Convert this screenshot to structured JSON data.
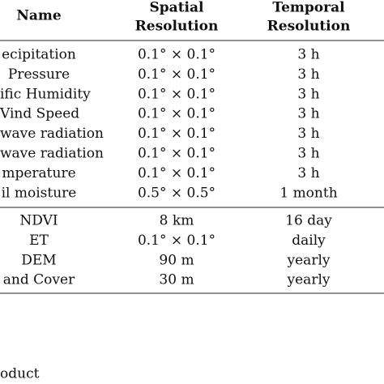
{
  "table": {
    "header": [
      [
        "Name"
      ],
      [
        "Spatial",
        "Resolution"
      ],
      [
        "Temporal",
        "Resolution"
      ]
    ],
    "groups": [
      [
        [
          "ecipitation",
          "0.1° × 0.1°",
          "3 h"
        ],
        [
          "Pressure",
          "0.1° × 0.1°",
          "3 h"
        ],
        [
          "ific Humidity",
          "0.1° × 0.1°",
          "3 h"
        ],
        [
          "Vind Speed",
          "0.1° × 0.1°",
          "3 h"
        ],
        [
          "wave radiation",
          "0.1° × 0.1°",
          "3 h"
        ],
        [
          "wave radiation",
          "0.1° × 0.1°",
          "3 h"
        ],
        [
          "mperature",
          "0.1° × 0.1°",
          "3 h"
        ],
        [
          "il moisture",
          "0.5° × 0.5°",
          "1 month"
        ]
      ],
      [
        [
          "NDVI",
          "8 km",
          "16 day"
        ],
        [
          "ET",
          "0.1° × 0.1°",
          "daily"
        ],
        [
          "DEM",
          "90 m",
          "yearly"
        ],
        [
          "and Cover",
          "30 m",
          "yearly"
        ]
      ]
    ],
    "footer": "oduct"
  }
}
